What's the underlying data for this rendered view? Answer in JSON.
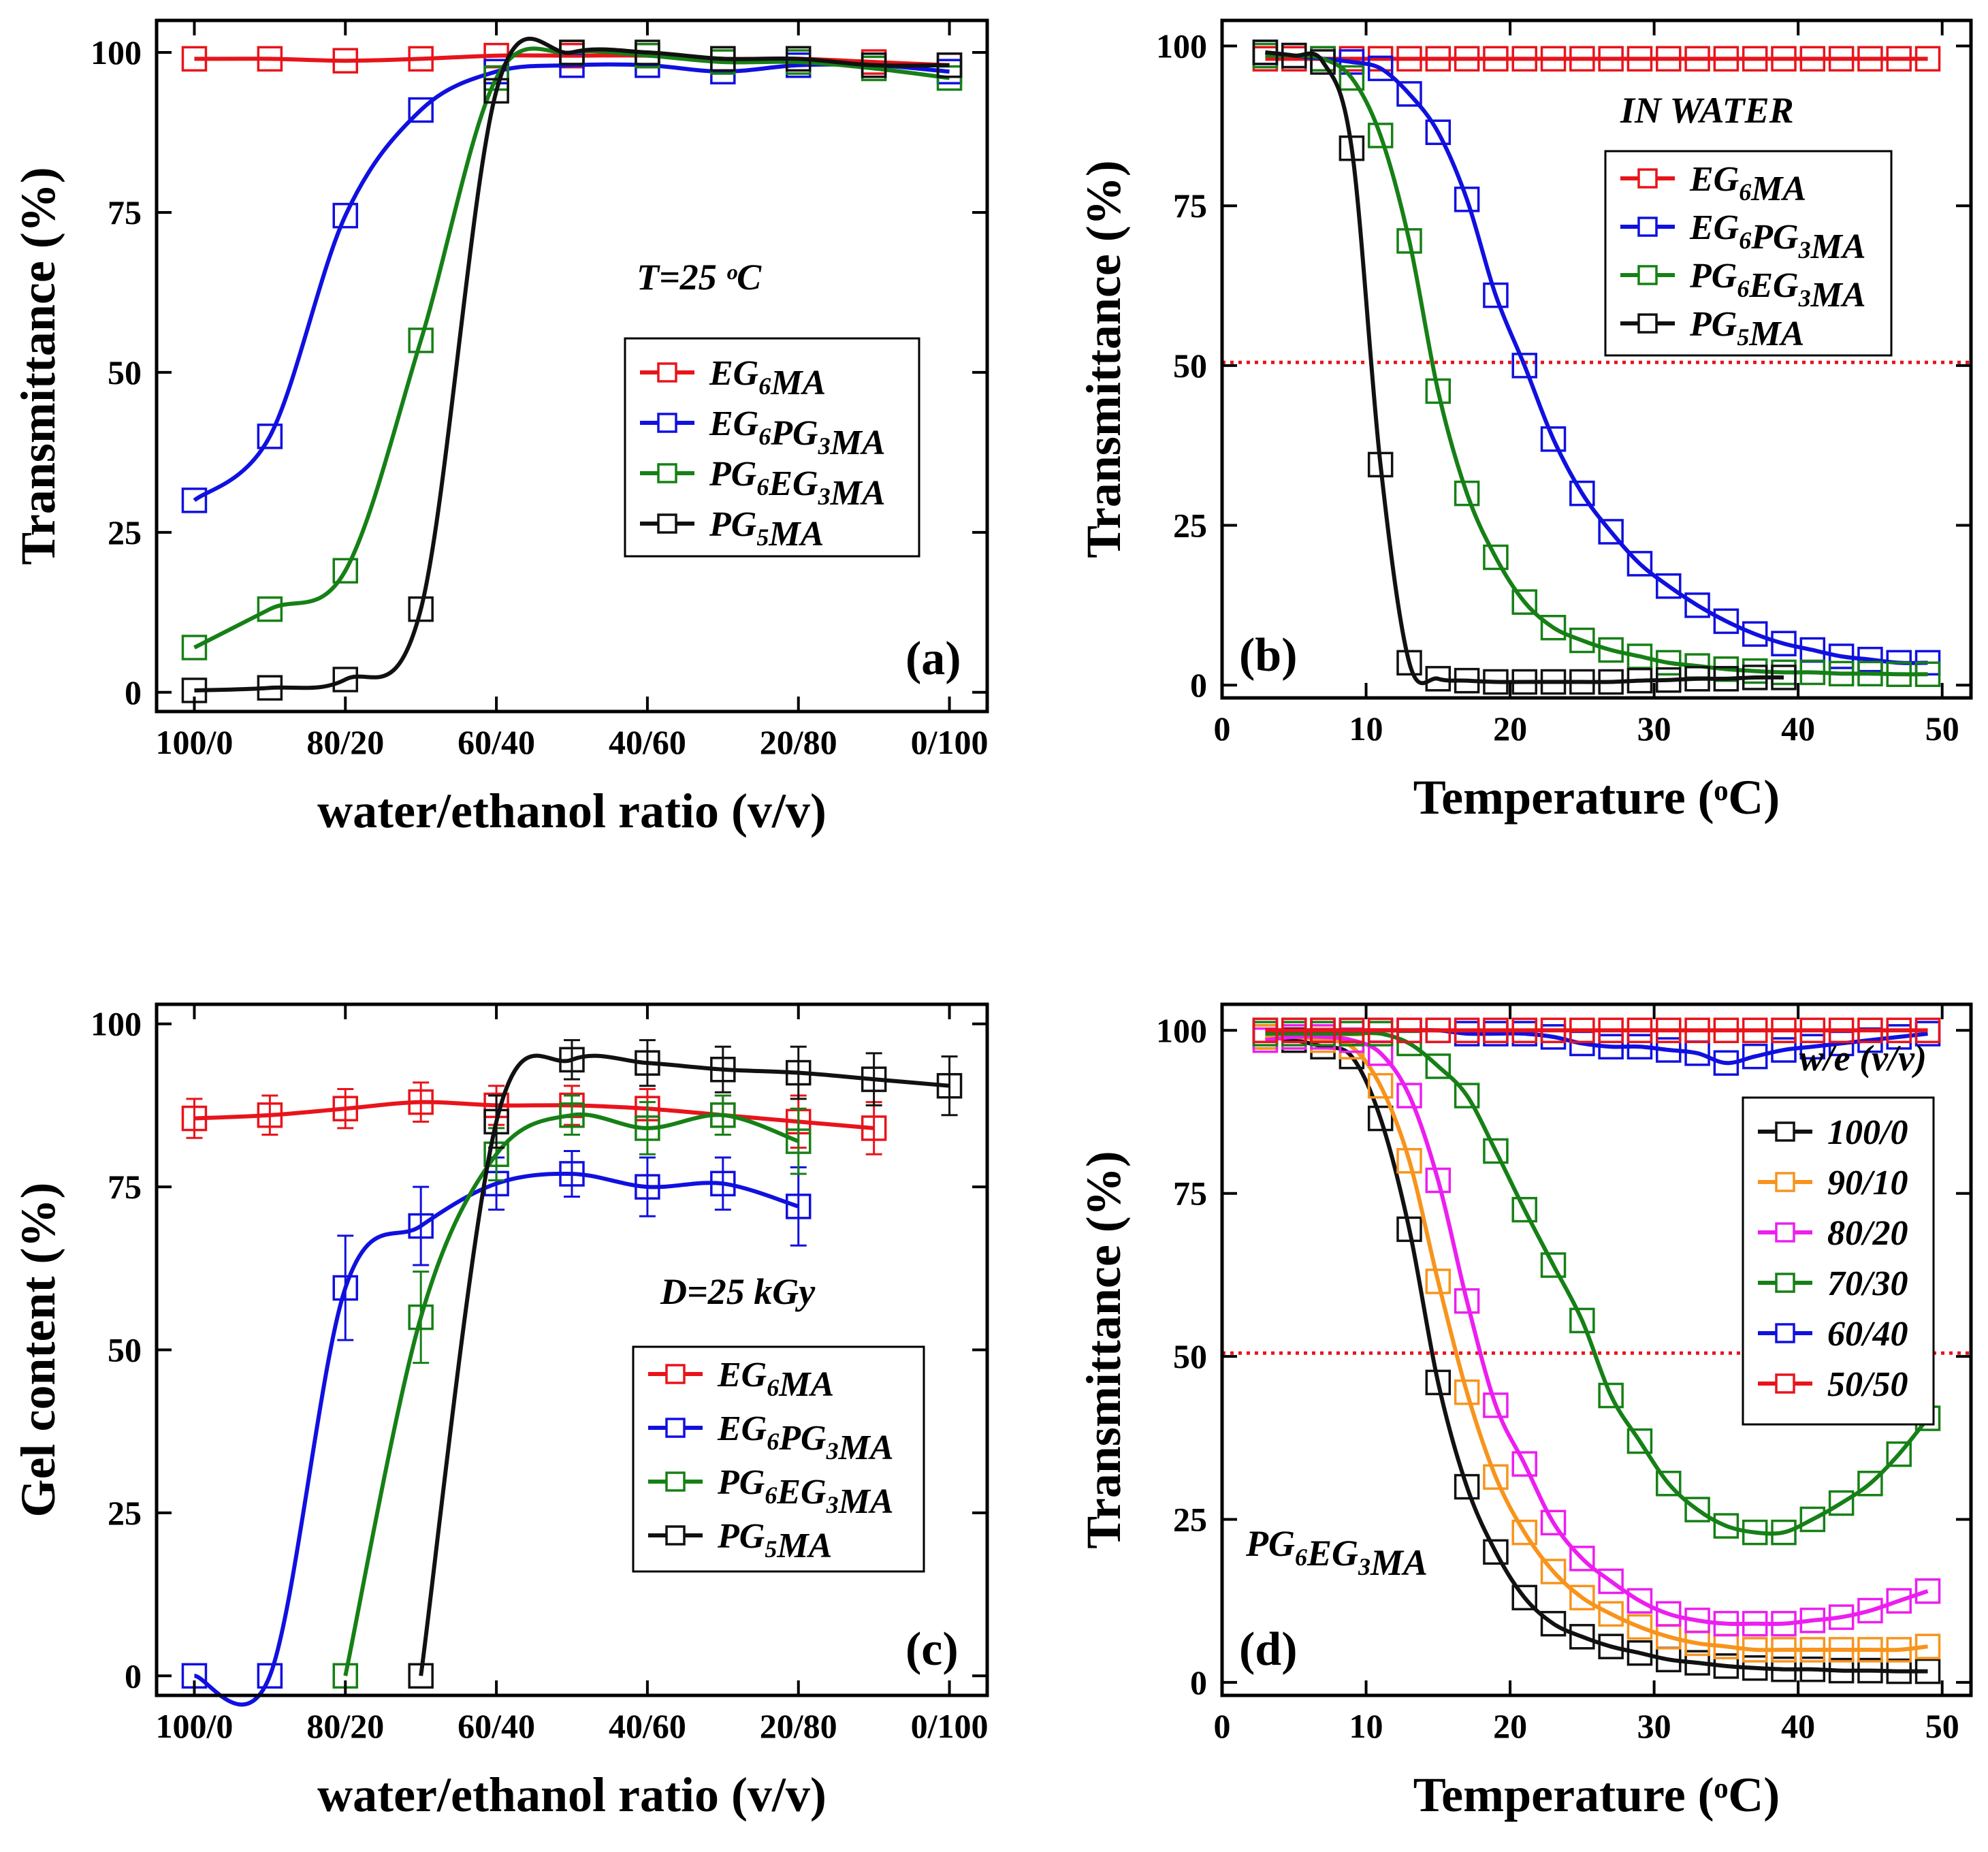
{
  "chart_data": [
    {
      "id": "a",
      "type": "line",
      "panel_label": "(a)",
      "xlabel": "water/ethanol ratio (v/v)",
      "ylabel": "Transmittance (%)",
      "annotation": "T=25 ᵒC",
      "xlim": [
        -0.5,
        10.5
      ],
      "ylim": [
        -3,
        105
      ],
      "x_ticks": [
        0,
        2,
        4,
        6,
        8,
        10
      ],
      "x_tick_labels": [
        "100/0",
        "80/20",
        "60/40",
        "40/60",
        "20/80",
        "0/100"
      ],
      "y_ticks": [
        0,
        25,
        50,
        75,
        100
      ],
      "y_tick_labels": [
        "0",
        "25",
        "50",
        "75",
        "100"
      ],
      "legend_position": "center-right",
      "series": [
        {
          "name": "EG6MA",
          "label_main": [
            "EG",
            "MA"
          ],
          "label_subs": [
            "6"
          ],
          "color": "#e8141b",
          "x": [
            0,
            1,
            2,
            3,
            4,
            5,
            6,
            7,
            8,
            9,
            10
          ],
          "values": [
            99,
            99,
            98.7,
            99,
            99.5,
            99.5,
            99.5,
            99,
            99,
            98.5,
            98
          ]
        },
        {
          "name": "EG6PG3MA",
          "label_main": [
            "EG",
            "PG",
            "MA"
          ],
          "label_subs": [
            "6",
            "3"
          ],
          "color": "#1010e0",
          "x": [
            0,
            1,
            2,
            3,
            4,
            5,
            6,
            7,
            8,
            9,
            10
          ],
          "values": [
            30,
            40,
            74.5,
            91,
            97,
            98,
            98,
            97,
            98,
            98,
            97
          ]
        },
        {
          "name": "PG6EG3MA",
          "label_main": [
            "PG",
            "EG",
            "MA"
          ],
          "label_subs": [
            "6",
            "3"
          ],
          "color": "#168016",
          "x": [
            0,
            1,
            2,
            3,
            4,
            5,
            6,
            7,
            8,
            9,
            10
          ],
          "values": [
            7,
            13,
            19,
            55,
            96,
            100,
            99.5,
            98.5,
            98.5,
            97.5,
            96
          ]
        },
        {
          "name": "PG5MA",
          "label_main": [
            "PG",
            "MA"
          ],
          "label_subs": [
            "5"
          ],
          "color": "#111111",
          "x": [
            0,
            1,
            2,
            3,
            4,
            5,
            6,
            7,
            8,
            9,
            10
          ],
          "values": [
            0.3,
            0.7,
            2,
            13,
            94,
            100,
            100,
            99,
            99,
            98,
            98
          ]
        }
      ]
    },
    {
      "id": "b",
      "type": "scatter",
      "panel_label": "(b)",
      "xlabel": "Temperature (ᵒC)",
      "ylabel": "Transmittance (%)",
      "annotation": "IN WATER",
      "xlim": [
        0,
        52
      ],
      "ylim": [
        -2,
        104
      ],
      "x_ticks": [
        0,
        10,
        20,
        30,
        40,
        50
      ],
      "x_tick_labels": [
        "0",
        "10",
        "20",
        "30",
        "40",
        "50"
      ],
      "y_ticks": [
        0,
        25,
        50,
        75,
        100
      ],
      "y_tick_labels": [
        "0",
        "25",
        "50",
        "75",
        "100"
      ],
      "reference_line_y": 50.5,
      "legend_position": "top-right",
      "series": [
        {
          "name": "EG6MA",
          "label_main": [
            "EG",
            "MA"
          ],
          "label_subs": [
            "6"
          ],
          "color": "#e8141b",
          "x": [
            3,
            5,
            7,
            9,
            11,
            13,
            15,
            17,
            19,
            21,
            23,
            25,
            27,
            29,
            31,
            33,
            35,
            37,
            39,
            41,
            43,
            45,
            47,
            49
          ],
          "values": [
            98,
            98,
            98,
            98,
            98,
            98,
            98,
            98,
            98,
            98,
            98,
            98,
            98,
            98,
            98,
            98,
            98,
            98,
            98,
            98,
            98,
            98,
            98,
            98
          ]
        },
        {
          "name": "EG6PG3MA",
          "label_main": [
            "EG",
            "PG",
            "MA"
          ],
          "label_subs": [
            "6",
            "3"
          ],
          "color": "#1010e0",
          "x": [
            3,
            5,
            7,
            9,
            11,
            13,
            15,
            17,
            19,
            21,
            23,
            25,
            27,
            29,
            31,
            33,
            35,
            37,
            39,
            41,
            43,
            45,
            47,
            49
          ],
          "values": [
            99,
            98.5,
            98,
            97.5,
            96.5,
            92.5,
            86.5,
            76,
            61,
            50,
            38.5,
            30,
            24,
            19,
            15.5,
            12.5,
            10,
            8,
            6.5,
            5.5,
            4.5,
            4,
            3.5,
            3.5
          ]
        },
        {
          "name": "PG6EG3MA",
          "label_main": [
            "PG",
            "EG",
            "MA"
          ],
          "label_subs": [
            "6",
            "3"
          ],
          "color": "#168016",
          "x": [
            3,
            5,
            7,
            9,
            11,
            13,
            15,
            17,
            19,
            21,
            23,
            25,
            27,
            29,
            31,
            33,
            35,
            37,
            39,
            41,
            43,
            45,
            47,
            49
          ],
          "values": [
            98.5,
            98.5,
            98,
            95,
            86,
            69.5,
            46,
            30,
            20,
            13,
            9,
            7,
            5.5,
            4.5,
            3.5,
            3,
            2.5,
            2.2,
            2,
            2,
            1.8,
            1.8,
            1.7,
            1.7
          ]
        },
        {
          "name": "PG5MA",
          "label_main": [
            "PG",
            "MA"
          ],
          "label_subs": [
            "5"
          ],
          "color": "#111111",
          "x": [
            3,
            5,
            7,
            9,
            11,
            13,
            15,
            17,
            19,
            21,
            23,
            25,
            27,
            29,
            31,
            33,
            35,
            37,
            39
          ],
          "values": [
            99,
            98.5,
            97.5,
            84,
            34.5,
            3.5,
            1,
            0.7,
            0.5,
            0.5,
            0.5,
            0.5,
            0.5,
            0.7,
            0.8,
            1,
            1,
            1.2,
            1.2
          ]
        }
      ]
    },
    {
      "id": "c",
      "type": "line",
      "panel_label": "(c)",
      "xlabel": "water/ethanol ratio (v/v)",
      "ylabel": "Gel content (%)",
      "annotation": "D=25 kGy",
      "xlim": [
        -0.5,
        10.5
      ],
      "ylim": [
        -3,
        103
      ],
      "x_ticks": [
        0,
        2,
        4,
        6,
        8,
        10
      ],
      "x_tick_labels": [
        "100/0",
        "80/20",
        "60/40",
        "40/60",
        "20/80",
        "0/100"
      ],
      "y_ticks": [
        0,
        25,
        50,
        75,
        100
      ],
      "y_tick_labels": [
        "0",
        "25",
        "50",
        "75",
        "100"
      ],
      "legend_position": "bottom-right",
      "series": [
        {
          "name": "EG6MA",
          "label_main": [
            "EG",
            "MA"
          ],
          "label_subs": [
            "6"
          ],
          "color": "#e8141b",
          "x": [
            0,
            1,
            2,
            3,
            4,
            5,
            6,
            7,
            8,
            9
          ],
          "values": [
            85.5,
            86,
            87,
            88,
            87.5,
            87.5,
            87,
            86,
            85,
            84
          ],
          "error": [
            3,
            3,
            3,
            3,
            3,
            3,
            3,
            3,
            4,
            4
          ]
        },
        {
          "name": "EG6PG3MA",
          "label_main": [
            "EG",
            "PG",
            "MA"
          ],
          "label_subs": [
            "6",
            "3"
          ],
          "color": "#1010e0",
          "x": [
            0,
            1,
            2,
            3,
            4,
            5,
            6,
            7,
            8
          ],
          "values": [
            0,
            0,
            59.5,
            69,
            75.5,
            77,
            75,
            75.5,
            72
          ],
          "error": [
            0,
            0,
            8,
            6,
            4,
            3.5,
            4.5,
            4,
            6
          ]
        },
        {
          "name": "PG6EG3MA",
          "label_main": [
            "PG",
            "EG",
            "MA"
          ],
          "label_subs": [
            "6",
            "3"
          ],
          "color": "#168016",
          "x": [
            2,
            3,
            4,
            5,
            6,
            7,
            8
          ],
          "values": [
            0,
            55,
            80,
            86,
            84,
            86,
            82
          ],
          "error": [
            0,
            7,
            4,
            3,
            4,
            3,
            5
          ]
        },
        {
          "name": "PG5MA",
          "label_main": [
            "PG",
            "MA"
          ],
          "label_subs": [
            "5"
          ],
          "color": "#111111",
          "x": [
            3,
            4,
            5,
            6,
            7,
            8,
            9,
            10
          ],
          "values": [
            0,
            85,
            94.5,
            94,
            93,
            92.5,
            91.5,
            90.5
          ],
          "error": [
            0,
            4,
            3,
            3.5,
            3.5,
            4,
            4,
            4.5
          ]
        }
      ]
    },
    {
      "id": "d",
      "type": "line",
      "panel_label": "(d)",
      "xlabel": "Temperature (ᵒC)",
      "ylabel": "Transmittance (%)",
      "annotation": "PG6EG3MA",
      "annotation_main": [
        "PG",
        "EG",
        "MA"
      ],
      "annotation_subs": [
        "6",
        "3"
      ],
      "legend_title": "w/e (v/v)",
      "xlim": [
        0,
        52
      ],
      "ylim": [
        -2,
        104
      ],
      "x_ticks": [
        0,
        10,
        20,
        30,
        40,
        50
      ],
      "x_tick_labels": [
        "0",
        "10",
        "20",
        "30",
        "40",
        "50"
      ],
      "y_ticks": [
        0,
        25,
        50,
        75,
        100
      ],
      "y_tick_labels": [
        "0",
        "25",
        "50",
        "75",
        "100"
      ],
      "reference_line_y": 50.5,
      "legend_position": "right",
      "series": [
        {
          "name": "100/0",
          "color": "#111111",
          "x": [
            3,
            5,
            7,
            9,
            11,
            13,
            15,
            17,
            19,
            21,
            23,
            25,
            27,
            29,
            31,
            33,
            35,
            37,
            39,
            41,
            43,
            45,
            47,
            49
          ],
          "values": [
            99,
            98.5,
            97.5,
            96,
            86.5,
            69.5,
            46,
            30,
            20,
            13,
            9,
            7,
            5.5,
            4.5,
            3.5,
            3,
            2.5,
            2.2,
            2,
            2,
            1.8,
            1.8,
            1.7,
            1.7
          ]
        },
        {
          "name": "90/10",
          "color": "#f7941d",
          "x": [
            3,
            5,
            7,
            9,
            11,
            13,
            15,
            17,
            19,
            21,
            23,
            25,
            27,
            29,
            31,
            33,
            35,
            37,
            39,
            41,
            43,
            45,
            47,
            49
          ],
          "values": [
            99,
            99,
            98.5,
            97.5,
            91.5,
            80,
            61.5,
            44.5,
            31.5,
            23,
            17,
            13,
            10.5,
            8.5,
            7,
            6,
            5.5,
            5,
            5,
            5,
            5,
            5,
            5,
            5.5
          ]
        },
        {
          "name": "80/20",
          "color": "#ec1ef0",
          "x": [
            3,
            5,
            7,
            9,
            11,
            13,
            15,
            17,
            19,
            21,
            23,
            25,
            27,
            29,
            31,
            33,
            35,
            37,
            39,
            41,
            43,
            45,
            47,
            49
          ],
          "values": [
            98.5,
            99,
            99,
            98.5,
            96.5,
            90,
            77,
            58.5,
            42.5,
            33.5,
            24.5,
            19,
            15.5,
            12.5,
            10.5,
            9.5,
            9,
            9,
            9,
            9.5,
            10,
            11,
            12.5,
            14
          ]
        },
        {
          "name": "70/30",
          "color": "#168016",
          "x": [
            3,
            5,
            7,
            9,
            11,
            13,
            15,
            17,
            19,
            21,
            23,
            25,
            27,
            29,
            31,
            33,
            35,
            37,
            39,
            41,
            43,
            45,
            47,
            49
          ],
          "values": [
            99.5,
            99.5,
            99.5,
            99.5,
            99.5,
            98,
            94.5,
            90,
            81.5,
            72.5,
            64,
            55.5,
            44,
            37,
            30.5,
            26.5,
            24,
            23,
            23,
            25,
            27.5,
            30.5,
            35,
            40.5
          ]
        },
        {
          "name": "60/40",
          "color": "#1010e0",
          "x": [
            3,
            5,
            7,
            9,
            11,
            13,
            15,
            17,
            19,
            21,
            23,
            25,
            27,
            29,
            31,
            33,
            35,
            37,
            39,
            41,
            43,
            45,
            47,
            49
          ],
          "values": [
            100,
            100,
            100,
            100,
            100,
            100,
            100,
            99.5,
            99.5,
            99.5,
            99,
            98,
            97.5,
            97.5,
            97,
            96.5,
            95,
            96,
            97,
            97.5,
            98,
            98.5,
            99,
            99.5
          ]
        },
        {
          "name": "50/50",
          "color": "#e8141b",
          "x": [
            3,
            5,
            7,
            9,
            11,
            13,
            15,
            17,
            19,
            21,
            23,
            25,
            27,
            29,
            31,
            33,
            35,
            37,
            39,
            41,
            43,
            45,
            47,
            49
          ],
          "values": [
            100,
            100,
            100,
            100,
            100,
            100,
            100,
            100,
            100,
            100,
            100,
            100,
            100,
            100,
            100,
            100,
            100,
            100,
            100,
            100,
            100,
            100,
            100,
            100
          ]
        }
      ]
    }
  ]
}
